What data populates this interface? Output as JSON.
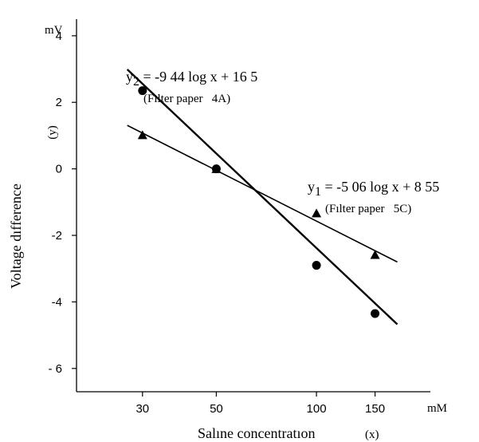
{
  "chart_data": {
    "type": "scatter",
    "title": "",
    "xlabel": "Salıne concentratıon",
    "xlabel_var": "(x)",
    "x_unit": "mM",
    "ylabel": "Voltage dıfference",
    "ylabel_var": "(y)",
    "y_unit": "mV",
    "x_scale": "log",
    "x_ticks": [
      30,
      50,
      100,
      150
    ],
    "x_tick_labels": [
      "30",
      "50",
      "100",
      "150"
    ],
    "y_ticks": [
      4,
      2,
      0,
      -2,
      -4,
      -6
    ],
    "y_tick_labels": [
      "4",
      "2",
      "0",
      "-2",
      "-4",
      "- 6"
    ],
    "ylim": [
      -6.7,
      4.5
    ],
    "xlim": [
      19,
      220
    ],
    "grid": false,
    "series": [
      {
        "marker": "circle",
        "points": [
          {
            "x": 30,
            "y": 2.35
          },
          {
            "x": 50,
            "y": 0.0
          },
          {
            "x": 100,
            "y": -2.9
          },
          {
            "x": 150,
            "y": -4.35
          }
        ],
        "fit": {
          "slope": -9.44,
          "intercept": 16.5,
          "x_range": [
            27,
            175
          ]
        },
        "equation_var": "y",
        "equation_sub": "2",
        "equation_rest": " = -9 44 log x + 16 5",
        "note": "(Fılter paper   4A)"
      },
      {
        "marker": "triangle",
        "points": [
          {
            "x": 30,
            "y": 1.0
          },
          {
            "x": 50,
            "y": -0.02
          },
          {
            "x": 100,
            "y": -1.35
          },
          {
            "x": 150,
            "y": -2.6
          }
        ],
        "fit": {
          "slope": -5.06,
          "intercept": 8.55,
          "x_range": [
            27,
            175
          ]
        },
        "equation_var": "y",
        "equation_sub": "1",
        "equation_rest": " = -5 06 log x + 8 55",
        "note": "(Fılter paper   5C)"
      }
    ]
  }
}
